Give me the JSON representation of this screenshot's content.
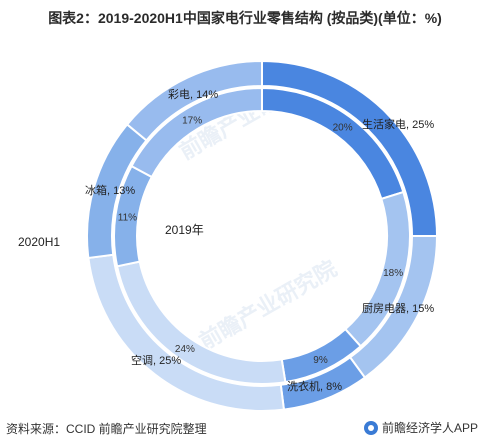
{
  "title": "图表2：2019-2020H1中国家电行业零售结构 (按品类)(单位：%)",
  "source": "资料来源：CCID 前瞻产业研究院整理",
  "brand": "前瞻经济学人APP",
  "watermark": "前瞻产业研究院",
  "chart_data": {
    "type": "pie",
    "subtype": "double-donut",
    "categories": [
      "生活家电",
      "厨房电器",
      "洗衣机",
      "空调",
      "冰箱",
      "彩电"
    ],
    "colors": [
      "#4a86e0",
      "#a4c4f0",
      "#6b9ee6",
      "#c9dcf6",
      "#86b1ea",
      "#98bbee"
    ],
    "series": [
      {
        "name": "2020H1",
        "ring": "outer",
        "values": [
          25,
          15,
          8,
          25,
          13,
          14
        ]
      },
      {
        "name": "2019年",
        "ring": "inner",
        "values": [
          20,
          18,
          9,
          24,
          11,
          17
        ]
      }
    ],
    "outer_labels": [
      "生活家电, 25%",
      "厨房电器, 15%",
      "洗衣机, 8%",
      "空调, 25%",
      "冰箱, 13%",
      "彩电, 14%"
    ],
    "inner_labels": [
      "20%",
      "18%",
      "9%",
      "24%",
      "11%",
      "17%"
    ]
  }
}
